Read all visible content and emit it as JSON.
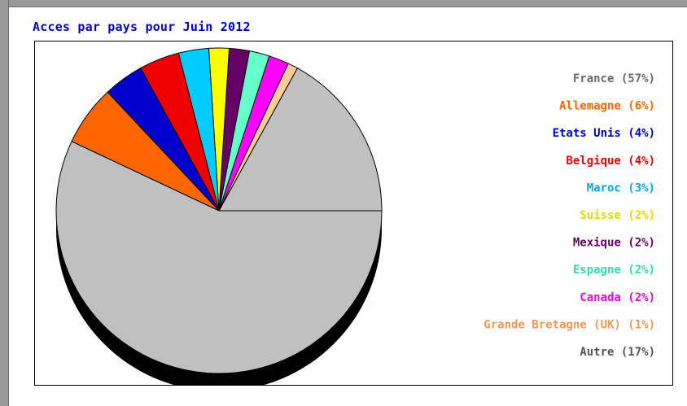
{
  "title": "Acces par pays pour Juin 2012",
  "chart_data": {
    "type": "pie",
    "title": "Acces par pays pour Juin 2012",
    "slices": [
      {
        "label": "France",
        "value": 57,
        "legend": "France (57%)",
        "color": "#c0c0c0",
        "text_color": "#6b6b6b"
      },
      {
        "label": "Allemagne",
        "value": 6,
        "legend": "Allemagne (6%)",
        "color": "#ff6600",
        "text_color": "#ff6600"
      },
      {
        "label": "Etats Unis",
        "value": 4,
        "legend": "Etats Unis (4%)",
        "color": "#0000cc",
        "text_color": "#0000cc"
      },
      {
        "label": "Belgique",
        "value": 4,
        "legend": "Belgique (4%)",
        "color": "#ee0000",
        "text_color": "#ee0000"
      },
      {
        "label": "Maroc",
        "value": 3,
        "legend": "Maroc (3%)",
        "color": "#00ccff",
        "text_color": "#00aaee"
      },
      {
        "label": "Suisse",
        "value": 2,
        "legend": "Suisse (2%)",
        "color": "#ffff00",
        "text_color": "#e6d800"
      },
      {
        "label": "Mexique",
        "value": 2,
        "legend": "Mexique (2%)",
        "color": "#660066",
        "text_color": "#660066"
      },
      {
        "label": "Espagne",
        "value": 2,
        "legend": "Espagne (2%)",
        "color": "#66ffcc",
        "text_color": "#33ddaa"
      },
      {
        "label": "Canada",
        "value": 2,
        "legend": "Canada (2%)",
        "color": "#ff00ff",
        "text_color": "#ee00ee"
      },
      {
        "label": "Grande Bretagne (UK)",
        "value": 1,
        "legend": "Grande Bretagne (UK) (1%)",
        "color": "#ffcc99",
        "text_color": "#ee9955"
      },
      {
        "label": "Autre",
        "value": 17,
        "legend": "Autre (17%)",
        "color": "#c0c0c0",
        "text_color": "#555555"
      }
    ],
    "legend_placement": "right",
    "pie_style": "3d"
  }
}
